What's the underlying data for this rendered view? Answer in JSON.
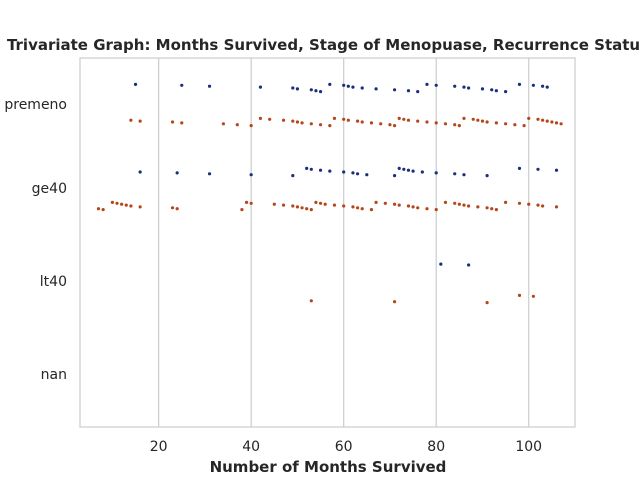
{
  "chart_data": {
    "type": "scatter",
    "title": "Trivariate Graph: Months Survived, Stage of Menopuase, Recurrence Status",
    "xlabel": "Number of Months Survived",
    "ylabel": "",
    "xlim": [
      3,
      110
    ],
    "xticks": [
      20,
      40,
      60,
      80,
      100
    ],
    "categories": [
      "premeno",
      "ge40",
      "lt40",
      "nan"
    ],
    "grid": "vertical",
    "legend": "none",
    "series": [
      {
        "color": "#1a2f7a",
        "points": [
          {
            "x": 15,
            "y": "premeno"
          },
          {
            "x": 25,
            "y": "premeno"
          },
          {
            "x": 31,
            "y": "premeno"
          },
          {
            "x": 42,
            "y": "premeno"
          },
          {
            "x": 49,
            "y": "premeno"
          },
          {
            "x": 50,
            "y": "premeno"
          },
          {
            "x": 53,
            "y": "premeno"
          },
          {
            "x": 54,
            "y": "premeno"
          },
          {
            "x": 55,
            "y": "premeno"
          },
          {
            "x": 57,
            "y": "premeno"
          },
          {
            "x": 60,
            "y": "premeno"
          },
          {
            "x": 61,
            "y": "premeno"
          },
          {
            "x": 62,
            "y": "premeno"
          },
          {
            "x": 64,
            "y": "premeno"
          },
          {
            "x": 67,
            "y": "premeno"
          },
          {
            "x": 71,
            "y": "premeno"
          },
          {
            "x": 74,
            "y": "premeno"
          },
          {
            "x": 76,
            "y": "premeno"
          },
          {
            "x": 78,
            "y": "premeno"
          },
          {
            "x": 80,
            "y": "premeno"
          },
          {
            "x": 84,
            "y": "premeno"
          },
          {
            "x": 86,
            "y": "premeno"
          },
          {
            "x": 87,
            "y": "premeno"
          },
          {
            "x": 90,
            "y": "premeno"
          },
          {
            "x": 92,
            "y": "premeno"
          },
          {
            "x": 93,
            "y": "premeno"
          },
          {
            "x": 95,
            "y": "premeno"
          },
          {
            "x": 98,
            "y": "premeno"
          },
          {
            "x": 101,
            "y": "premeno"
          },
          {
            "x": 103,
            "y": "premeno"
          },
          {
            "x": 104,
            "y": "premeno"
          },
          {
            "x": 16,
            "y": "ge40"
          },
          {
            "x": 24,
            "y": "ge40"
          },
          {
            "x": 31,
            "y": "ge40"
          },
          {
            "x": 40,
            "y": "ge40"
          },
          {
            "x": 49,
            "y": "ge40"
          },
          {
            "x": 52,
            "y": "ge40"
          },
          {
            "x": 53,
            "y": "ge40"
          },
          {
            "x": 55,
            "y": "ge40"
          },
          {
            "x": 57,
            "y": "ge40"
          },
          {
            "x": 60,
            "y": "ge40"
          },
          {
            "x": 62,
            "y": "ge40"
          },
          {
            "x": 63,
            "y": "ge40"
          },
          {
            "x": 65,
            "y": "ge40"
          },
          {
            "x": 71,
            "y": "ge40"
          },
          {
            "x": 72,
            "y": "ge40"
          },
          {
            "x": 73,
            "y": "ge40"
          },
          {
            "x": 74,
            "y": "ge40"
          },
          {
            "x": 75,
            "y": "ge40"
          },
          {
            "x": 77,
            "y": "ge40"
          },
          {
            "x": 80,
            "y": "ge40"
          },
          {
            "x": 84,
            "y": "ge40"
          },
          {
            "x": 86,
            "y": "ge40"
          },
          {
            "x": 91,
            "y": "ge40"
          },
          {
            "x": 98,
            "y": "ge40"
          },
          {
            "x": 102,
            "y": "ge40"
          },
          {
            "x": 106,
            "y": "ge40"
          },
          {
            "x": 81,
            "y": "lt40"
          },
          {
            "x": 87,
            "y": "lt40"
          }
        ]
      },
      {
        "color": "#b5461a",
        "points": [
          {
            "x": 14,
            "y": "premeno"
          },
          {
            "x": 16,
            "y": "premeno"
          },
          {
            "x": 23,
            "y": "premeno"
          },
          {
            "x": 25,
            "y": "premeno"
          },
          {
            "x": 34,
            "y": "premeno"
          },
          {
            "x": 37,
            "y": "premeno"
          },
          {
            "x": 40,
            "y": "premeno"
          },
          {
            "x": 42,
            "y": "premeno"
          },
          {
            "x": 44,
            "y": "premeno"
          },
          {
            "x": 47,
            "y": "premeno"
          },
          {
            "x": 49,
            "y": "premeno"
          },
          {
            "x": 50,
            "y": "premeno"
          },
          {
            "x": 51,
            "y": "premeno"
          },
          {
            "x": 53,
            "y": "premeno"
          },
          {
            "x": 55,
            "y": "premeno"
          },
          {
            "x": 57,
            "y": "premeno"
          },
          {
            "x": 58,
            "y": "premeno"
          },
          {
            "x": 60,
            "y": "premeno"
          },
          {
            "x": 61,
            "y": "premeno"
          },
          {
            "x": 63,
            "y": "premeno"
          },
          {
            "x": 64,
            "y": "premeno"
          },
          {
            "x": 66,
            "y": "premeno"
          },
          {
            "x": 68,
            "y": "premeno"
          },
          {
            "x": 70,
            "y": "premeno"
          },
          {
            "x": 71,
            "y": "premeno"
          },
          {
            "x": 72,
            "y": "premeno"
          },
          {
            "x": 73,
            "y": "premeno"
          },
          {
            "x": 74,
            "y": "premeno"
          },
          {
            "x": 76,
            "y": "premeno"
          },
          {
            "x": 78,
            "y": "premeno"
          },
          {
            "x": 80,
            "y": "premeno"
          },
          {
            "x": 82,
            "y": "premeno"
          },
          {
            "x": 84,
            "y": "premeno"
          },
          {
            "x": 85,
            "y": "premeno"
          },
          {
            "x": 86,
            "y": "premeno"
          },
          {
            "x": 88,
            "y": "premeno"
          },
          {
            "x": 89,
            "y": "premeno"
          },
          {
            "x": 90,
            "y": "premeno"
          },
          {
            "x": 91,
            "y": "premeno"
          },
          {
            "x": 93,
            "y": "premeno"
          },
          {
            "x": 95,
            "y": "premeno"
          },
          {
            "x": 97,
            "y": "premeno"
          },
          {
            "x": 99,
            "y": "premeno"
          },
          {
            "x": 100,
            "y": "premeno"
          },
          {
            "x": 102,
            "y": "premeno"
          },
          {
            "x": 103,
            "y": "premeno"
          },
          {
            "x": 104,
            "y": "premeno"
          },
          {
            "x": 105,
            "y": "premeno"
          },
          {
            "x": 106,
            "y": "premeno"
          },
          {
            "x": 107,
            "y": "premeno"
          },
          {
            "x": 7,
            "y": "ge40"
          },
          {
            "x": 8,
            "y": "ge40"
          },
          {
            "x": 10,
            "y": "ge40"
          },
          {
            "x": 11,
            "y": "ge40"
          },
          {
            "x": 12,
            "y": "ge40"
          },
          {
            "x": 13,
            "y": "ge40"
          },
          {
            "x": 14,
            "y": "ge40"
          },
          {
            "x": 16,
            "y": "ge40"
          },
          {
            "x": 23,
            "y": "ge40"
          },
          {
            "x": 24,
            "y": "ge40"
          },
          {
            "x": 38,
            "y": "ge40"
          },
          {
            "x": 39,
            "y": "ge40"
          },
          {
            "x": 40,
            "y": "ge40"
          },
          {
            "x": 45,
            "y": "ge40"
          },
          {
            "x": 47,
            "y": "ge40"
          },
          {
            "x": 49,
            "y": "ge40"
          },
          {
            "x": 50,
            "y": "ge40"
          },
          {
            "x": 51,
            "y": "ge40"
          },
          {
            "x": 52,
            "y": "ge40"
          },
          {
            "x": 53,
            "y": "ge40"
          },
          {
            "x": 54,
            "y": "ge40"
          },
          {
            "x": 55,
            "y": "ge40"
          },
          {
            "x": 56,
            "y": "ge40"
          },
          {
            "x": 58,
            "y": "ge40"
          },
          {
            "x": 60,
            "y": "ge40"
          },
          {
            "x": 62,
            "y": "ge40"
          },
          {
            "x": 63,
            "y": "ge40"
          },
          {
            "x": 64,
            "y": "ge40"
          },
          {
            "x": 66,
            "y": "ge40"
          },
          {
            "x": 67,
            "y": "ge40"
          },
          {
            "x": 69,
            "y": "ge40"
          },
          {
            "x": 71,
            "y": "ge40"
          },
          {
            "x": 72,
            "y": "ge40"
          },
          {
            "x": 74,
            "y": "ge40"
          },
          {
            "x": 75,
            "y": "ge40"
          },
          {
            "x": 76,
            "y": "ge40"
          },
          {
            "x": 78,
            "y": "ge40"
          },
          {
            "x": 80,
            "y": "ge40"
          },
          {
            "x": 82,
            "y": "ge40"
          },
          {
            "x": 84,
            "y": "ge40"
          },
          {
            "x": 85,
            "y": "ge40"
          },
          {
            "x": 86,
            "y": "ge40"
          },
          {
            "x": 87,
            "y": "ge40"
          },
          {
            "x": 89,
            "y": "ge40"
          },
          {
            "x": 91,
            "y": "ge40"
          },
          {
            "x": 92,
            "y": "ge40"
          },
          {
            "x": 93,
            "y": "ge40"
          },
          {
            "x": 95,
            "y": "ge40"
          },
          {
            "x": 98,
            "y": "ge40"
          },
          {
            "x": 100,
            "y": "ge40"
          },
          {
            "x": 102,
            "y": "ge40"
          },
          {
            "x": 103,
            "y": "ge40"
          },
          {
            "x": 106,
            "y": "ge40"
          },
          {
            "x": 53,
            "y": "lt40"
          },
          {
            "x": 71,
            "y": "lt40"
          },
          {
            "x": 91,
            "y": "lt40"
          },
          {
            "x": 98,
            "y": "lt40"
          },
          {
            "x": 101,
            "y": "lt40"
          }
        ]
      }
    ]
  }
}
